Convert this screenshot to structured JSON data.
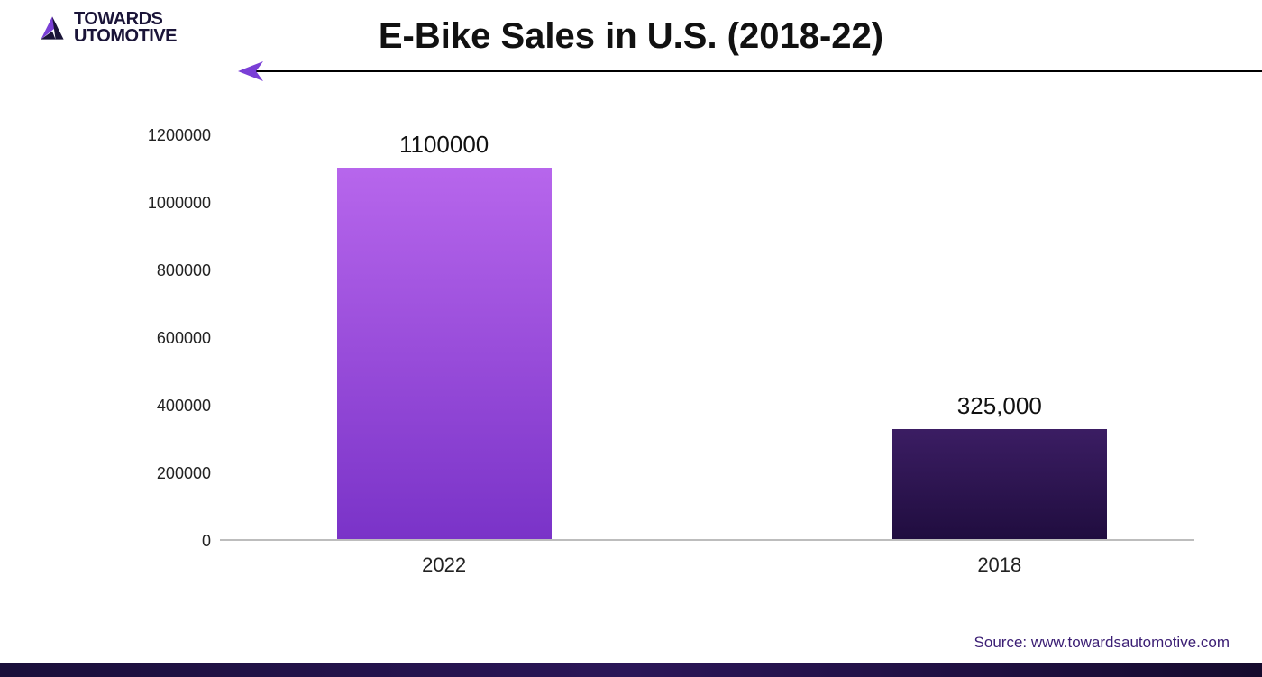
{
  "logo": {
    "line1": "TOWARDS",
    "line2": "UTOMOTIVE",
    "mark_colors": {
      "purple": "#7a3fd6",
      "dark": "#1a1438",
      "accent": "#b58cff"
    }
  },
  "title": "E-Bike Sales in U.S. (2018-22)",
  "arrow": {
    "line_color": "#000000",
    "head_color": "#7a3fd6"
  },
  "chart": {
    "type": "bar",
    "background_color": "#ffffff",
    "axis_color": "#bdbdbd",
    "label_fontsize": 18,
    "xlabel_fontsize": 22,
    "barlabel_fontsize": 26,
    "ylim": [
      0,
      1200000
    ],
    "ytick_step": 200000,
    "yticks": [
      "0",
      "200000",
      "400000",
      "600000",
      "800000",
      "1000000",
      "1200000"
    ],
    "bar_width_pct": 22,
    "bars": [
      {
        "category": "2022",
        "value": 1100000,
        "label": "1100000",
        "center_pct": 23,
        "gradient_top": "#b766ec",
        "gradient_bottom": "#7a33c8"
      },
      {
        "category": "2018",
        "value": 325000,
        "label": "325,000",
        "center_pct": 80,
        "gradient_top": "#3b1d63",
        "gradient_bottom": "#200d3f"
      }
    ]
  },
  "source": "Source: www.towardsautomotive.com",
  "bottom_strip_gradient": [
    "#1a0f3a",
    "#2b1658",
    "#160b2e"
  ]
}
